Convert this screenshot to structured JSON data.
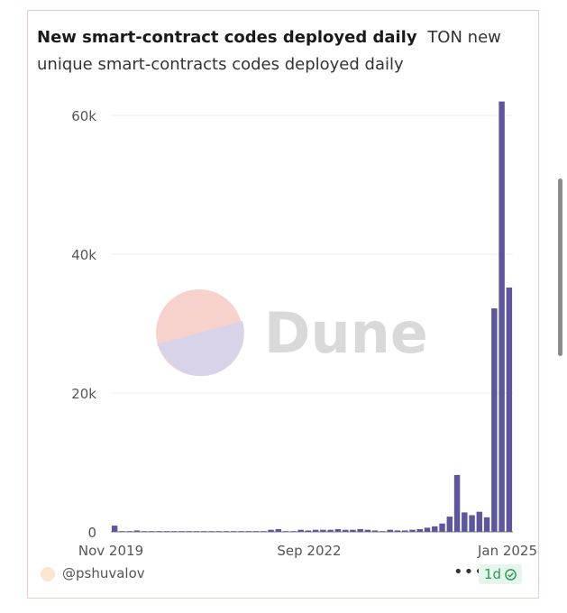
{
  "card": {
    "title": "New smart-contract codes deployed daily",
    "subtitle": "TON new unique smart-contracts codes deployed daily"
  },
  "chart_data": {
    "type": "bar",
    "title": "New smart-contract codes deployed daily",
    "subtitle": "TON new unique smart-contracts codes deployed daily",
    "xlabel": "",
    "ylabel": "",
    "ylim": [
      0,
      65000
    ],
    "yticks": [
      0,
      20000,
      40000,
      60000
    ],
    "ytick_labels": [
      "0",
      "20k",
      "40k",
      "60k"
    ],
    "xtick_labels": [
      "Nov 2019",
      "Sep 2022",
      "Jan 2025"
    ],
    "grid": true,
    "color": "#5c569b",
    "values": [
      900,
      100,
      100,
      200,
      100,
      100,
      100,
      100,
      100,
      100,
      100,
      100,
      100,
      100,
      100,
      100,
      100,
      100,
      100,
      100,
      100,
      300,
      400,
      100,
      100,
      300,
      200,
      300,
      300,
      300,
      400,
      300,
      300,
      400,
      300,
      200,
      100,
      300,
      200,
      200,
      300,
      400,
      600,
      800,
      1200,
      2200,
      8200,
      2800,
      2400,
      2900,
      2100,
      32200,
      62000,
      35200
    ]
  },
  "watermark": {
    "text": "Dune"
  },
  "footer": {
    "author": "@pshuvalov",
    "more": "•••",
    "refresh": "1d"
  }
}
